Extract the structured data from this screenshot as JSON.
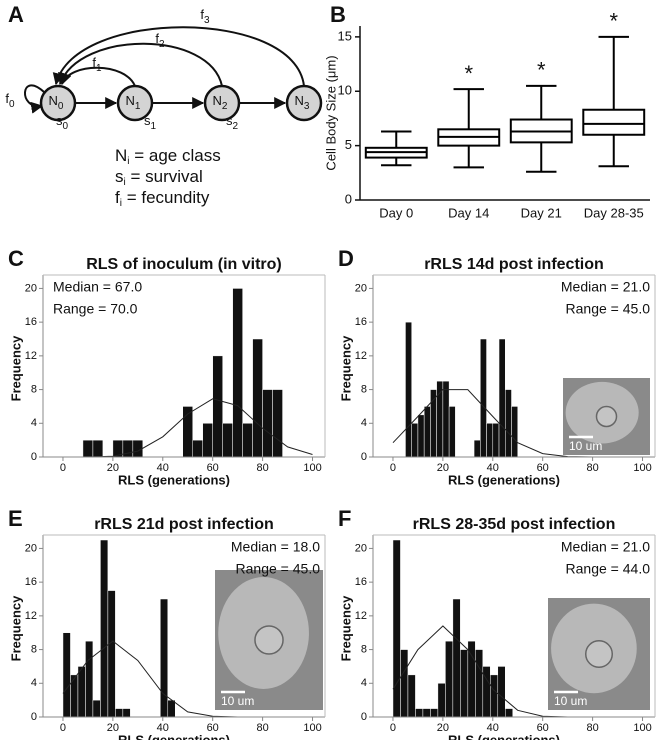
{
  "diagram": {
    "panel": "A",
    "nodes": [
      {
        "label": "N",
        "sub": "0"
      },
      {
        "label": "N",
        "sub": "1"
      },
      {
        "label": "N",
        "sub": "2"
      },
      {
        "label": "N",
        "sub": "3"
      }
    ],
    "survival": [
      {
        "label": "s",
        "sub": "0"
      },
      {
        "label": "s",
        "sub": "1"
      },
      {
        "label": "s",
        "sub": "2"
      }
    ],
    "fecundity": [
      {
        "label": "f",
        "sub": "0"
      },
      {
        "label": "f",
        "sub": "1"
      },
      {
        "label": "f",
        "sub": "2"
      },
      {
        "label": "f",
        "sub": "3"
      }
    ],
    "legend": [
      {
        "symbol": "N",
        "sub": "i",
        "text": " = age class"
      },
      {
        "symbol": "s",
        "sub": "i",
        "text": " = survival"
      },
      {
        "symbol": "f",
        "sub": "i",
        "text": " = fecundity"
      }
    ]
  },
  "chart_data": [
    {
      "type": "box",
      "panel": "B",
      "ylabel": "Cell Body Size (μm)",
      "categories": [
        "Day 0",
        "Day 14",
        "Day 21",
        "Day 28-35"
      ],
      "min": [
        3.2,
        3.0,
        2.6,
        3.1
      ],
      "q1": [
        3.9,
        5.0,
        5.3,
        6.0
      ],
      "median": [
        4.4,
        5.8,
        6.3,
        7.0
      ],
      "q3": [
        4.8,
        6.5,
        7.4,
        8.3
      ],
      "max": [
        6.3,
        10.2,
        10.5,
        15.0
      ],
      "annotations": [
        null,
        "*",
        "*",
        "*"
      ],
      "color": "#000000",
      "ylim": [
        0,
        16
      ],
      "yticks": [
        0,
        5,
        10,
        15
      ]
    },
    {
      "type": "histogram",
      "panel": "C",
      "title": "RLS of inoculum (in vitro)",
      "xlabel": "RLS (generations)",
      "ylabel": "Frequency",
      "bins": [
        8,
        12,
        16,
        20,
        24,
        28,
        32,
        36,
        40,
        44,
        48,
        52,
        56,
        60,
        64,
        68,
        72,
        76,
        80,
        84,
        88
      ],
      "counts": [
        2,
        2,
        0,
        2,
        2,
        2,
        0,
        0,
        0,
        0,
        6,
        2,
        4,
        12,
        4,
        20,
        4,
        14,
        8,
        8
      ],
      "curve": {
        "x": [
          0,
          10,
          20,
          30,
          40,
          50,
          60,
          70,
          80,
          90,
          100
        ],
        "y": [
          0,
          0,
          0.1,
          0.7,
          2.4,
          5.1,
          6.9,
          6.1,
          3.4,
          1.2,
          0.3
        ]
      },
      "annotations": [
        "Median = 67.0",
        "Range = 70.0"
      ],
      "annotation_corner": "upper left",
      "color": "#111111",
      "xlim": [
        -8,
        105
      ],
      "ylim": [
        0,
        21
      ],
      "xticks": [
        0,
        20,
        40,
        60,
        80,
        100
      ],
      "yticks": [
        0,
        4,
        8,
        12,
        16,
        20
      ]
    },
    {
      "type": "histogram",
      "panel": "D",
      "title": "rRLS 14d post infection",
      "xlabel": "RLS (generations)",
      "ylabel": "Frequency",
      "bins": [
        5,
        7.5,
        10,
        12.5,
        15,
        17.5,
        20,
        22.5,
        25,
        27.5,
        30,
        32.5,
        35,
        37.5,
        40,
        42.5,
        45,
        47.5,
        50
      ],
      "counts": [
        16,
        4,
        5,
        6,
        8,
        9,
        9,
        6,
        0,
        0,
        0,
        2,
        14,
        4,
        4,
        14,
        8,
        6
      ],
      "curve": {
        "x": [
          0,
          10,
          20,
          30,
          40,
          50,
          60,
          70,
          80,
          90,
          100
        ],
        "y": [
          1.7,
          4.8,
          8.0,
          8.0,
          4.8,
          1.7,
          0.4,
          0.05,
          0,
          0,
          0
        ]
      },
      "annotations": [
        "Median = 21.0",
        "Range = 45.0"
      ],
      "annotation_corner": "upper right",
      "inset": {
        "scale_label": "10 um"
      },
      "color": "#111111",
      "xlim": [
        -8,
        105
      ],
      "ylim": [
        0,
        21
      ],
      "xticks": [
        0,
        20,
        40,
        60,
        80,
        100
      ],
      "yticks": [
        0,
        4,
        8,
        12,
        16,
        20
      ]
    },
    {
      "type": "histogram",
      "panel": "E",
      "title": "rRLS 21d post infection",
      "xlabel": "RLS (generations)",
      "ylabel": "Frequency",
      "bins": [
        0,
        3,
        6,
        9,
        12,
        15,
        18,
        21,
        24,
        27,
        30,
        33,
        36,
        39,
        42,
        45
      ],
      "counts": [
        10,
        5,
        6,
        9,
        2,
        21,
        15,
        1,
        1,
        0,
        0,
        0,
        0,
        14,
        2
      ],
      "curve": {
        "x": [
          0,
          10,
          20,
          30,
          40,
          50,
          60,
          70,
          80,
          90,
          100
        ],
        "y": [
          2.8,
          6.7,
          9,
          6.7,
          2.8,
          0.6,
          0.1,
          0,
          0,
          0,
          0
        ]
      },
      "annotations": [
        "Median = 18.0",
        "Range = 45.0"
      ],
      "annotation_corner": "upper right",
      "inset": {
        "scale_label": "10 um"
      },
      "color": "#111111",
      "xlim": [
        -8,
        105
      ],
      "ylim": [
        0,
        21
      ],
      "xticks": [
        0,
        20,
        40,
        60,
        80,
        100
      ],
      "yticks": [
        0,
        4,
        8,
        12,
        16,
        20
      ]
    },
    {
      "type": "histogram",
      "panel": "F",
      "title": "rRLS 28-35d post infection",
      "xlabel": "RLS (generations)",
      "ylabel": "Frequency",
      "bins": [
        0,
        3,
        6,
        9,
        12,
        15,
        18,
        21,
        24,
        27,
        30,
        33,
        36,
        39,
        42,
        45,
        48
      ],
      "counts": [
        21,
        8,
        5,
        1,
        1,
        1,
        4,
        9,
        14,
        8,
        9,
        8,
        6,
        5,
        6,
        1
      ],
      "curve": {
        "x": [
          0,
          10,
          20,
          30,
          40,
          50,
          60,
          70,
          80,
          90,
          100
        ],
        "y": [
          3.3,
          8.0,
          10.8,
          8.0,
          3.3,
          0.8,
          0.1,
          0,
          0,
          0,
          0
        ]
      },
      "annotations": [
        "Median = 21.0",
        "Range = 44.0"
      ],
      "annotation_corner": "upper right",
      "inset": {
        "scale_label": "10 um"
      },
      "color": "#111111",
      "xlim": [
        -8,
        105
      ],
      "ylim": [
        0,
        21
      ],
      "xticks": [
        0,
        20,
        40,
        60,
        80,
        100
      ],
      "yticks": [
        0,
        4,
        8,
        12,
        16,
        20
      ]
    }
  ]
}
